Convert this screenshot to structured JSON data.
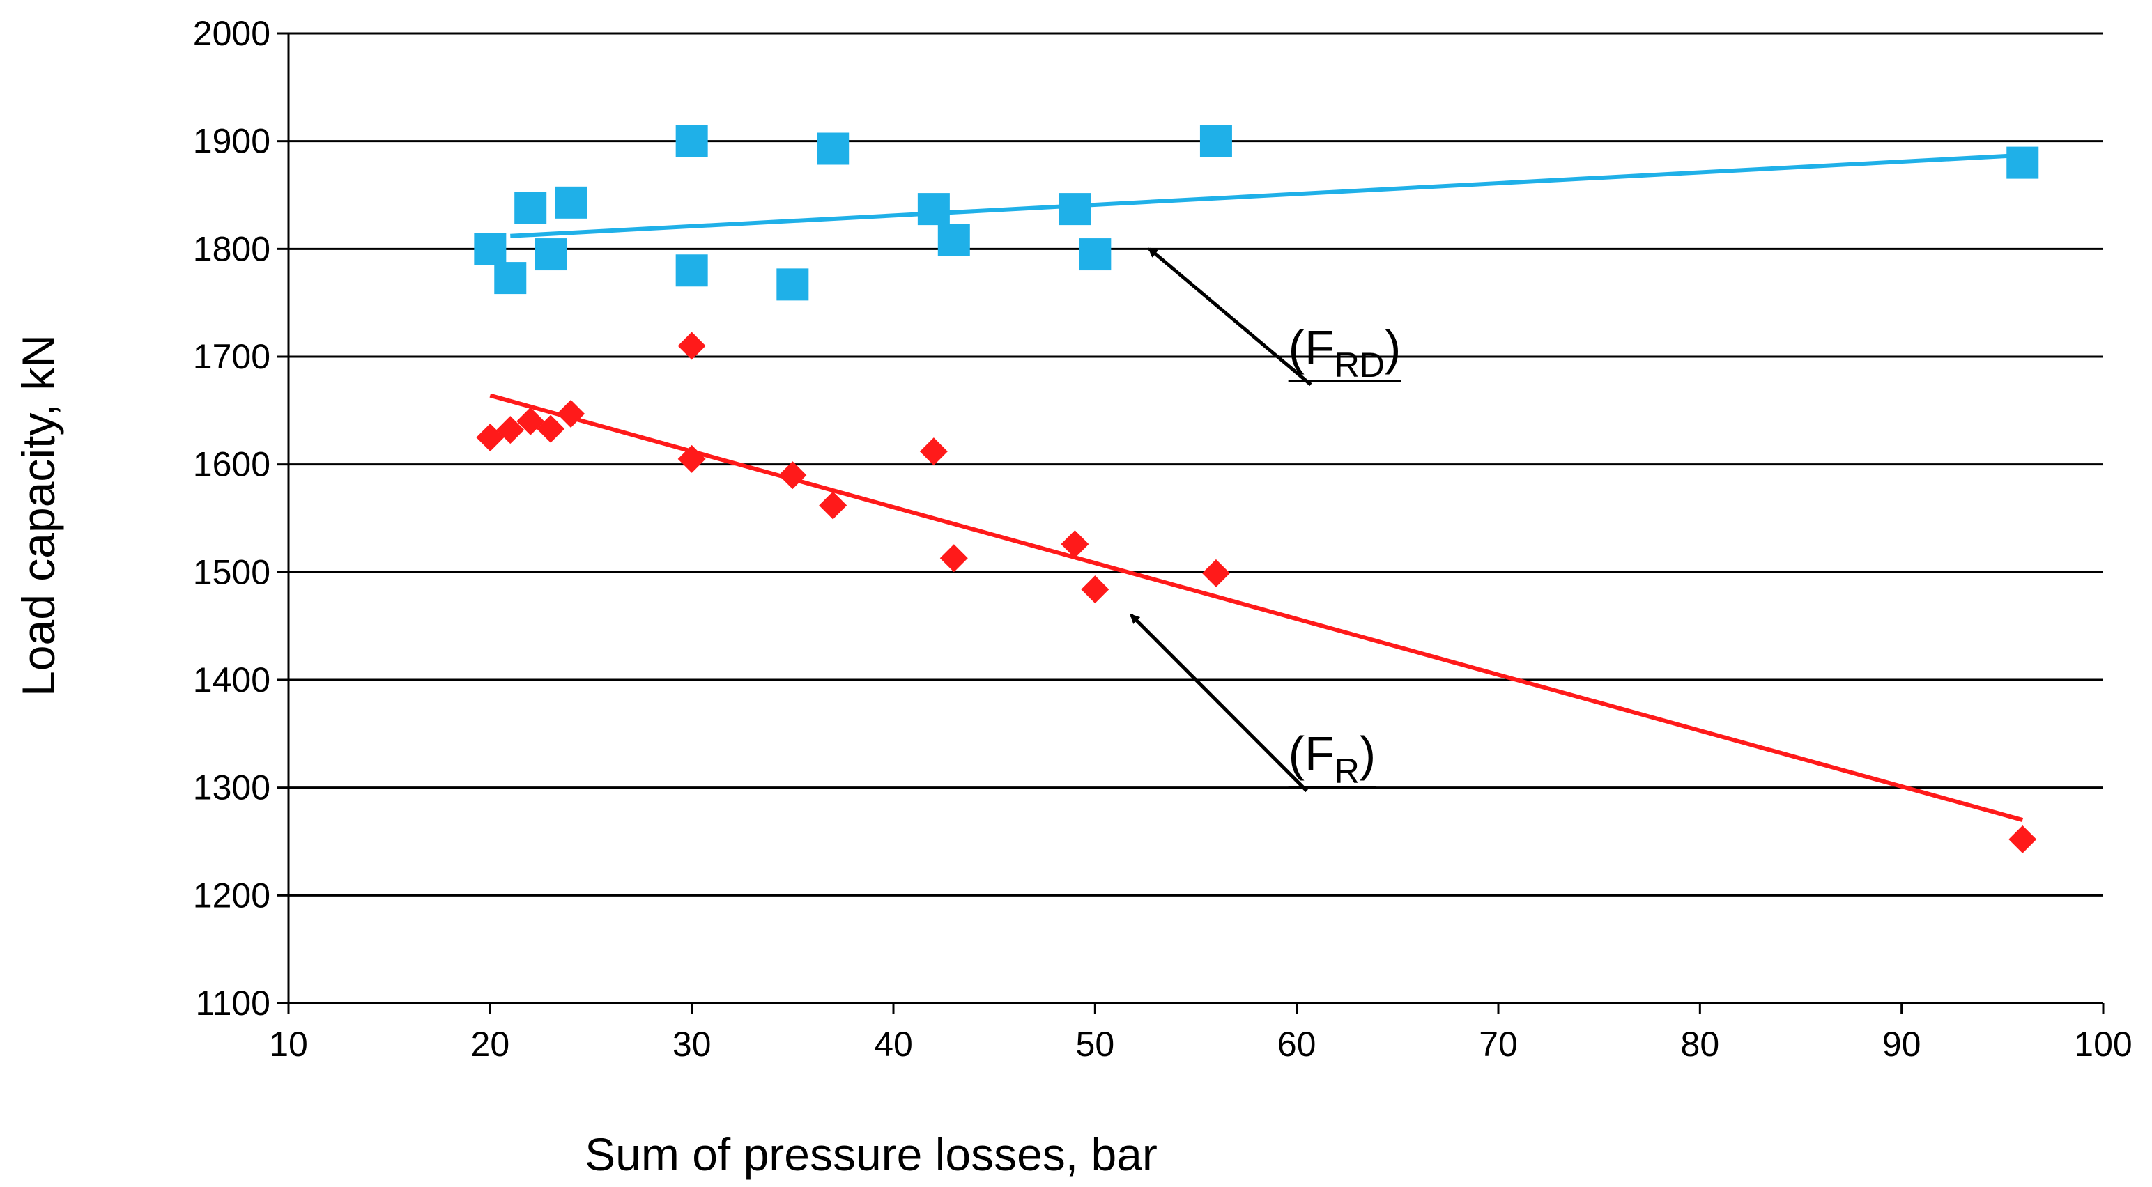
{
  "chart_data": {
    "type": "scatter",
    "title": "",
    "xlabel": "Sum of pressure losses, bar",
    "ylabel": "Load capacity, kN",
    "xlim": [
      10,
      100
    ],
    "ylim": [
      1100,
      2000
    ],
    "xticks": [
      10,
      20,
      30,
      40,
      50,
      60,
      70,
      80,
      90,
      100
    ],
    "yticks": [
      1100,
      1200,
      1300,
      1400,
      1500,
      1600,
      1700,
      1800,
      1900,
      2000
    ],
    "grid": "horizontal",
    "series": [
      {
        "name": "FRD",
        "marker": "square",
        "color": "#1fb0e8",
        "points": [
          [
            20,
            1800
          ],
          [
            21,
            1773
          ],
          [
            22,
            1838
          ],
          [
            23,
            1795
          ],
          [
            24,
            1843
          ],
          [
            30,
            1900
          ],
          [
            30,
            1780
          ],
          [
            35,
            1767
          ],
          [
            37,
            1893
          ],
          [
            42,
            1837
          ],
          [
            43,
            1808
          ],
          [
            49,
            1837
          ],
          [
            50,
            1795
          ],
          [
            56,
            1900
          ],
          [
            96,
            1880
          ]
        ],
        "trendline": [
          [
            21,
            1812
          ],
          [
            96,
            1887
          ]
        ]
      },
      {
        "name": "FR",
        "marker": "diamond",
        "color": "#ff1a1a",
        "points": [
          [
            20,
            1625
          ],
          [
            21,
            1632
          ],
          [
            22,
            1640
          ],
          [
            23,
            1633
          ],
          [
            24,
            1647
          ],
          [
            30,
            1710
          ],
          [
            30,
            1605
          ],
          [
            35,
            1590
          ],
          [
            37,
            1562
          ],
          [
            42,
            1612
          ],
          [
            43,
            1513
          ],
          [
            49,
            1526
          ],
          [
            50,
            1484
          ],
          [
            56,
            1499
          ],
          [
            96,
            1252
          ]
        ],
        "trendline": [
          [
            20,
            1664
          ],
          [
            96,
            1270
          ]
        ]
      }
    ],
    "annotations": [
      {
        "id": "frd-label",
        "text_main": "(F",
        "text_sub": "RD",
        "text_close": ")",
        "label_anchor": [
          60,
          1693
        ],
        "arrow_from": [
          60.7,
          1674
        ],
        "arrow_to": [
          52.7,
          1800
        ]
      },
      {
        "id": "fr-label",
        "text_main": "(F",
        "text_sub": "R",
        "text_close": ")",
        "label_anchor": [
          60,
          1316
        ],
        "arrow_from": [
          60.5,
          1297
        ],
        "arrow_to": [
          51.8,
          1460
        ]
      }
    ]
  }
}
